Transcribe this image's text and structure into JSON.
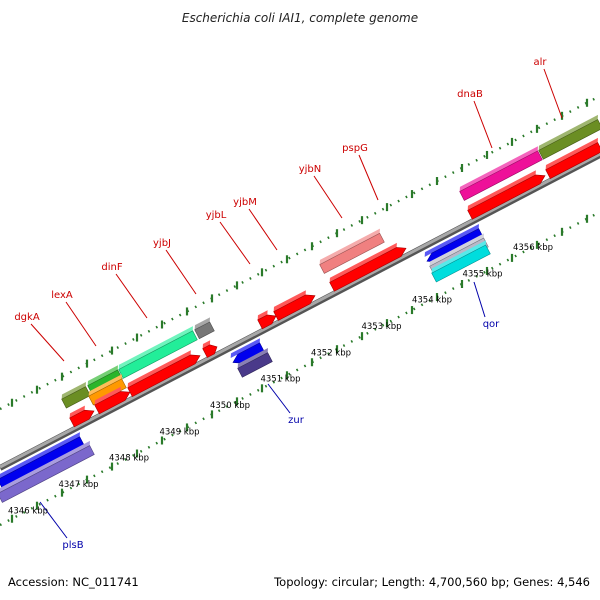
{
  "title": "Escherichia coli IAI1, complete genome",
  "footer": {
    "accession": "Accession: NC_011741",
    "summary": "Topology: circular; Length: 4,700,560 bp; Genes: 4,546"
  },
  "colors": {
    "forward_label": "#cc0000",
    "reverse_label": "#0000aa",
    "backbone": "#888888",
    "tick": "#2a7a2a"
  },
  "kbp_ticks": [
    "4346 kbp",
    "4347 kbp",
    "4348 kbp",
    "4349 kbp",
    "4350 kbp",
    "4351 kbp",
    "4352 kbp",
    "4353 kbp",
    "4354 kbp",
    "4355 kbp",
    "4356 kbp"
  ],
  "forward_genes": [
    {
      "name": "dgkA",
      "color": "#cc0000"
    },
    {
      "name": "lexA",
      "color": "#cc0000"
    },
    {
      "name": "dinF",
      "color": "#cc0000"
    },
    {
      "name": "yjbJ",
      "color": "#cc0000"
    },
    {
      "name": "yjbL",
      "color": "#cc0000"
    },
    {
      "name": "yjbM",
      "color": "#cc0000"
    },
    {
      "name": "yjbN",
      "color": "#cc0000"
    },
    {
      "name": "pspG",
      "color": "#cc0000"
    },
    {
      "name": "dnaB",
      "color": "#cc0000"
    },
    {
      "name": "alr",
      "color": "#cc0000"
    }
  ],
  "reverse_genes": [
    {
      "name": "plsB",
      "color": "#0000aa"
    },
    {
      "name": "zur",
      "color": "#0000aa"
    },
    {
      "name": "qor",
      "color": "#0000aa"
    }
  ]
}
